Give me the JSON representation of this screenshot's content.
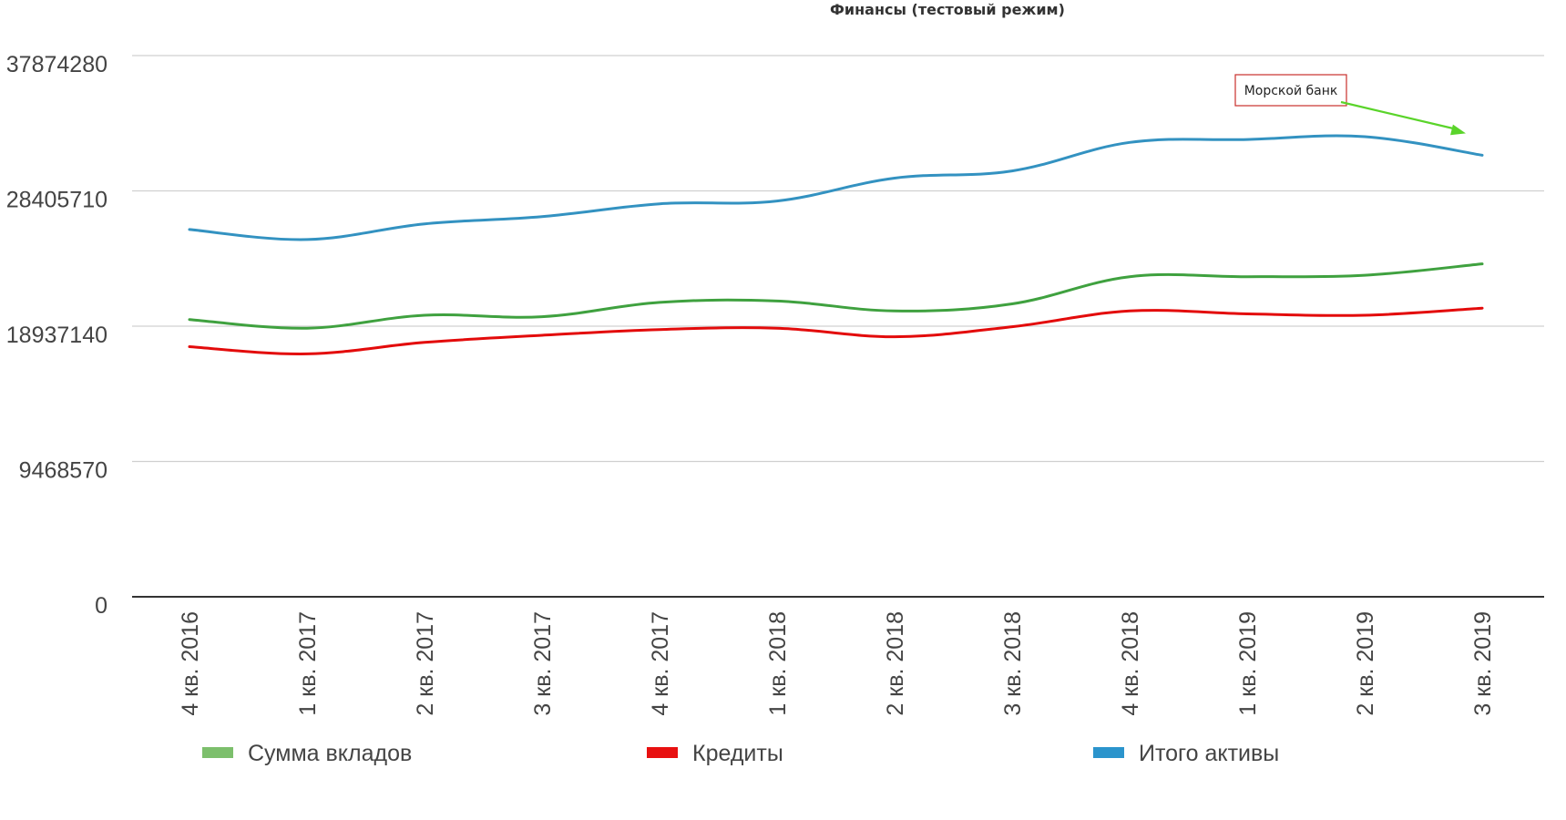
{
  "chart_data": {
    "type": "line",
    "title": "Финансы (тестовый режим)",
    "xlabel": "",
    "ylabel": "",
    "ylim": [
      0,
      37874280
    ],
    "yticks": [
      0,
      9468570,
      18937140,
      28405710,
      37874280
    ],
    "ytick_labels": [
      "0",
      "9468570",
      "18937140",
      "28405710",
      "37874280"
    ],
    "grid": true,
    "legend_position": "bottom",
    "categories": [
      "4 кв. 2016",
      "1 кв. 2017",
      "2 кв. 2017",
      "3 кв. 2017",
      "4 кв. 2017",
      "1 кв. 2018",
      "2 кв. 2018",
      "3 кв. 2018",
      "4 кв. 2018",
      "1 кв. 2019",
      "2 кв. 2019",
      "3 кв. 2019"
    ],
    "series": [
      {
        "name": "Сумма вкладов",
        "color": "#3fa13f",
        "legend_color": "#7cbf6c",
        "values": [
          19400000,
          18800000,
          19700000,
          19600000,
          20600000,
          20700000,
          20000000,
          20500000,
          22400000,
          22400000,
          22500000,
          23300000
        ]
      },
      {
        "name": "Кредиты",
        "color": "#e30b0b",
        "legend_color": "#e81010",
        "values": [
          17500000,
          17000000,
          17800000,
          18300000,
          18700000,
          18800000,
          18200000,
          18900000,
          20000000,
          19800000,
          19700000,
          20200000
        ]
      },
      {
        "name": "Итого активы",
        "color": "#3392c1",
        "legend_color": "#2b94cc",
        "values": [
          25700000,
          25000000,
          26100000,
          26600000,
          27500000,
          27700000,
          29300000,
          29800000,
          31800000,
          32000000,
          32200000,
          30900000
        ]
      }
    ],
    "annotation": {
      "text": "Морской банк",
      "target_series": "Итого активы",
      "target_category": "3 кв. 2019",
      "arrow_color": "#5ad42a"
    }
  }
}
